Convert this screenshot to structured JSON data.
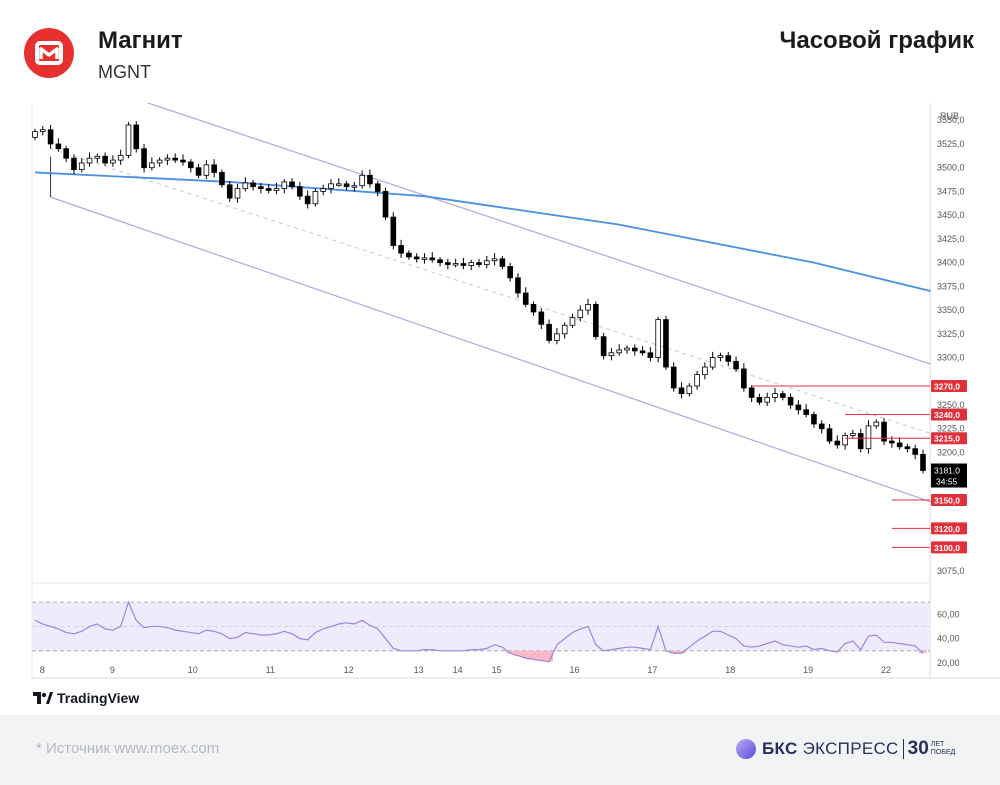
{
  "header": {
    "company": "Магнит",
    "ticker": "MGNT",
    "chart_kind": "Часовой график"
  },
  "footer": {
    "source": "*  Источник www.moex.com",
    "tradingview": "TradingView",
    "bcs_brand": "БКС",
    "bcs_brand2": "ЭКСПРЕСС",
    "bcs_30": "30",
    "bcs_years_1": "ЛЕТ",
    "bcs_years_2": "ПОБЕД"
  },
  "colors": {
    "up": "#ffffff",
    "down": "#000000",
    "ma": "#4a90e2",
    "channel": "#b2a8dc",
    "midline": "#c8c8c8",
    "level": "#e0313b",
    "rsi": "#9b86e0",
    "rsi_band": "#efeafc",
    "oversold": "#f8b8c4"
  },
  "chart_data": {
    "type": "candlestick",
    "currency": "RUB",
    "ylim": [
      3062.5,
      3565
    ],
    "y_ticks": [
      "3550,0",
      "3525,0",
      "3500,0",
      "3475,0",
      "3450,0",
      "3425,0",
      "3400,0",
      "3375,0",
      "3350,0",
      "3325,0",
      "3300,0",
      "3250,0",
      "3225,0",
      "3200,0",
      "3075,0"
    ],
    "x_ticks": [
      "8",
      "9",
      "10",
      "11",
      "12",
      "13",
      "14",
      "15",
      "16",
      "17",
      "18",
      "19",
      "22"
    ],
    "x_tick_index": [
      1,
      10,
      20,
      30,
      40,
      49,
      54,
      59,
      69,
      79,
      89,
      99,
      109
    ],
    "last_price": "3181,0",
    "countdown": "34:55",
    "levels": [
      {
        "label": "3270,0",
        "value": 3270,
        "from": 92
      },
      {
        "label": "3240,0",
        "value": 3240,
        "from": 104
      },
      {
        "label": "3215,0",
        "value": 3215,
        "from": 104
      },
      {
        "label": "3150,0",
        "value": 3150,
        "from": 110
      },
      {
        "label": "3120,0",
        "value": 3120,
        "from": 110
      },
      {
        "label": "3100,0",
        "value": 3100,
        "from": 110
      }
    ],
    "candles_start": 3532,
    "candles_close": [
      3538,
      3540,
      3525,
      3520,
      3510,
      3498,
      3505,
      3510,
      3512,
      3505,
      3508,
      3513,
      3545,
      3520,
      3500,
      3505,
      3508,
      3510,
      3508,
      3506,
      3500,
      3492,
      3503,
      3495,
      3482,
      3468,
      3478,
      3484,
      3480,
      3478,
      3476,
      3478,
      3485,
      3480,
      3470,
      3462,
      3475,
      3478,
      3483,
      3483,
      3480,
      3481,
      3492,
      3483,
      3475,
      3448,
      3418,
      3410,
      3406,
      3404,
      3405,
      3403,
      3400,
      3398,
      3399,
      3397,
      3400,
      3398,
      3402,
      3404,
      3396,
      3384,
      3368,
      3356,
      3348,
      3335,
      3318,
      3325,
      3334,
      3342,
      3350,
      3356,
      3322,
      3302,
      3305,
      3308,
      3310,
      3307,
      3305,
      3300,
      3340,
      3290,
      3268,
      3262,
      3270,
      3282,
      3290,
      3300,
      3302,
      3296,
      3288,
      3268,
      3258,
      3253,
      3258,
      3262,
      3258,
      3250,
      3245,
      3240,
      3230,
      3225,
      3212,
      3208,
      3218,
      3220,
      3204,
      3228,
      3232,
      3212,
      3210,
      3206,
      3204,
      3198,
      3181
    ],
    "ma": {
      "name": "",
      "points": [
        [
          0,
          3495
        ],
        [
          25,
          3485
        ],
        [
          50,
          3470
        ],
        [
          75,
          3440
        ],
        [
          100,
          3400
        ],
        [
          115,
          3370
        ]
      ]
    },
    "channel": {
      "upper": [
        [
          12,
          3575
        ],
        [
          115,
          3293
        ]
      ],
      "lower": [
        [
          2,
          3469
        ],
        [
          115,
          3148
        ]
      ],
      "middle": [
        [
          2,
          3520
        ],
        [
          115,
          3220
        ]
      ]
    },
    "rsi": {
      "ylim": [
        20,
        75
      ],
      "y_ticks": [
        "60,00",
        "40,00",
        "20,00"
      ],
      "upper_band": 70,
      "lower_band": 30,
      "values": [
        55,
        52,
        50,
        48,
        45,
        44,
        46,
        50,
        52,
        48,
        47,
        50,
        70,
        55,
        49,
        50,
        50,
        49,
        47,
        46,
        45,
        44,
        47,
        46,
        44,
        40,
        41,
        45,
        44,
        43,
        43,
        44,
        46,
        44,
        40,
        39,
        45,
        48,
        50,
        52,
        53,
        52,
        55,
        51,
        48,
        40,
        32,
        30,
        30,
        30,
        31,
        31,
        30,
        30,
        30,
        30,
        31,
        31,
        32,
        35,
        33,
        28,
        26,
        24,
        23,
        22,
        21,
        35,
        40,
        45,
        48,
        50,
        35,
        30,
        31,
        32,
        33,
        33,
        32,
        31,
        50,
        30,
        28,
        28,
        33,
        38,
        42,
        46,
        46,
        43,
        40,
        34,
        33,
        34,
        36,
        38,
        35,
        34,
        33,
        34,
        31,
        32,
        30,
        29,
        36,
        38,
        31,
        42,
        43,
        37,
        37,
        36,
        35,
        34,
        28
      ]
    }
  }
}
